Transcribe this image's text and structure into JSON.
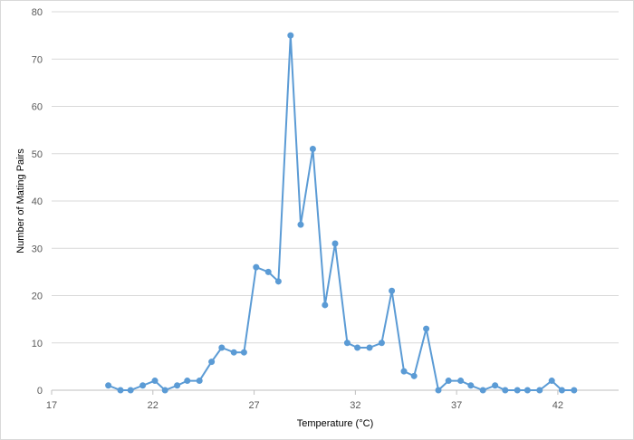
{
  "chart_data": {
    "type": "line",
    "title": "",
    "xlabel": "Temperature (°C)",
    "ylabel": "Number of Mating Pairs",
    "xlim": [
      17,
      45
    ],
    "ylim": [
      0,
      80
    ],
    "x_ticks": [
      17,
      22,
      27,
      32,
      37,
      42
    ],
    "y_ticks": [
      0,
      10,
      20,
      30,
      40,
      50,
      60,
      70,
      80
    ],
    "grid": true,
    "legend": "none",
    "series": [
      {
        "color": "#5b9bd5",
        "marker": "circle",
        "x": [
          19.8,
          20.4,
          20.9,
          21.5,
          22.1,
          22.6,
          23.2,
          23.7,
          24.3,
          24.9,
          25.4,
          26.0,
          26.5,
          27.1,
          27.7,
          28.2,
          28.8,
          29.3,
          29.9,
          30.5,
          31.0,
          31.6,
          32.1,
          32.7,
          33.3,
          33.8,
          34.4,
          34.9,
          35.5,
          36.1,
          36.6,
          37.2,
          37.7,
          38.3,
          38.9,
          39.4,
          40.0,
          40.5,
          41.1,
          41.7,
          42.2,
          42.8
        ],
        "y": [
          1,
          0,
          0,
          1,
          2,
          0,
          1,
          2,
          2,
          6,
          9,
          8,
          8,
          26,
          25,
          23,
          75,
          35,
          51,
          18,
          31,
          10,
          9,
          9,
          10,
          21,
          4,
          3,
          13,
          0,
          2,
          2,
          1,
          0,
          1,
          0,
          0,
          0,
          0,
          2,
          0,
          0
        ]
      }
    ]
  }
}
